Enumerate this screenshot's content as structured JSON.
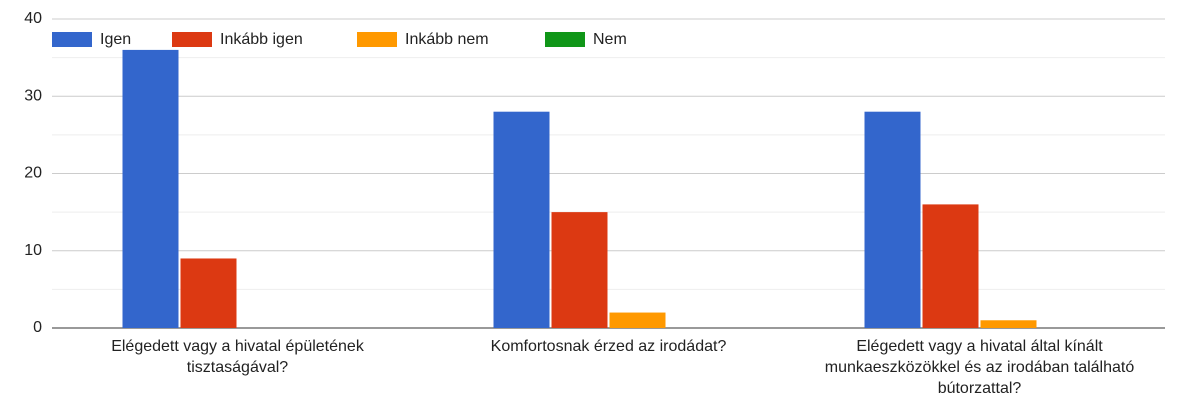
{
  "chart_data": {
    "type": "bar",
    "categories": [
      "Elégedett vagy a hivatal épületének tisztaságával?",
      "Komfortosnak érzed az irodádat?",
      "Elégedett vagy a hivatal által kínált munkaeszközökkel és az irodában található bútorzattal?"
    ],
    "series": [
      {
        "name": "Igen",
        "color": "#3366cc",
        "values": [
          36,
          28,
          28
        ]
      },
      {
        "name": "Inkább igen",
        "color": "#dc3912",
        "values": [
          9,
          15,
          16
        ]
      },
      {
        "name": "Inkább nem",
        "color": "#ff9900",
        "values": [
          0,
          2,
          1
        ]
      },
      {
        "name": "Nem",
        "color": "#109618",
        "values": [
          0,
          0,
          0
        ]
      }
    ],
    "ylim": [
      0,
      40
    ],
    "yticks": [
      0,
      10,
      20,
      30,
      40
    ],
    "grid": true,
    "legend": "top-left"
  }
}
